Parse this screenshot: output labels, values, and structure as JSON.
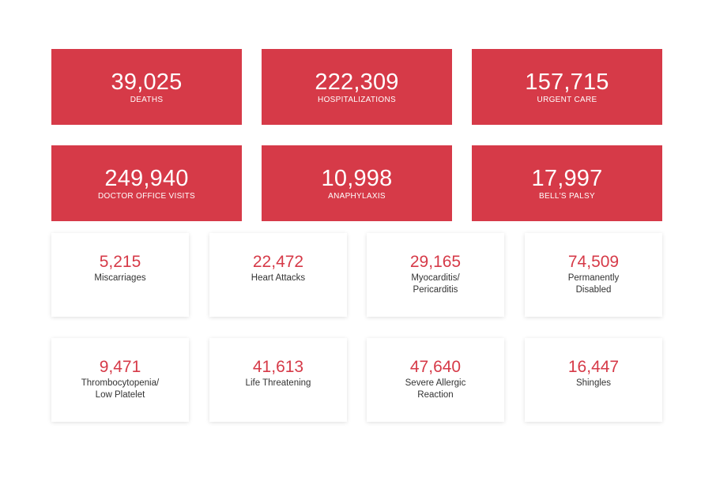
{
  "primary_stats": [
    {
      "value": "39,025",
      "label": "DEATHS"
    },
    {
      "value": "222,309",
      "label": "HOSPITALIZATIONS"
    },
    {
      "value": "157,715",
      "label": "URGENT CARE"
    },
    {
      "value": "249,940",
      "label": "DOCTOR OFFICE VISITS"
    },
    {
      "value": "10,998",
      "label": "ANAPHYLAXIS"
    },
    {
      "value": "17,997",
      "label": "BELL'S PALSY"
    }
  ],
  "secondary_stats": [
    {
      "value": "5,215",
      "label": "Miscarriages"
    },
    {
      "value": "22,472",
      "label": "Heart Attacks"
    },
    {
      "value": "29,165",
      "label": "Myocarditis/\nPericarditis"
    },
    {
      "value": "74,509",
      "label": "Permanently\nDisabled"
    },
    {
      "value": "9,471",
      "label": "Thrombocytopenia/\nLow Platelet"
    },
    {
      "value": "41,613",
      "label": "Life Threatening"
    },
    {
      "value": "47,640",
      "label": "Severe Allergic\nReaction"
    },
    {
      "value": "16,447",
      "label": "Shingles"
    }
  ],
  "colors": {
    "accent": "#d63a48",
    "text": "#333333",
    "background": "#ffffff"
  }
}
